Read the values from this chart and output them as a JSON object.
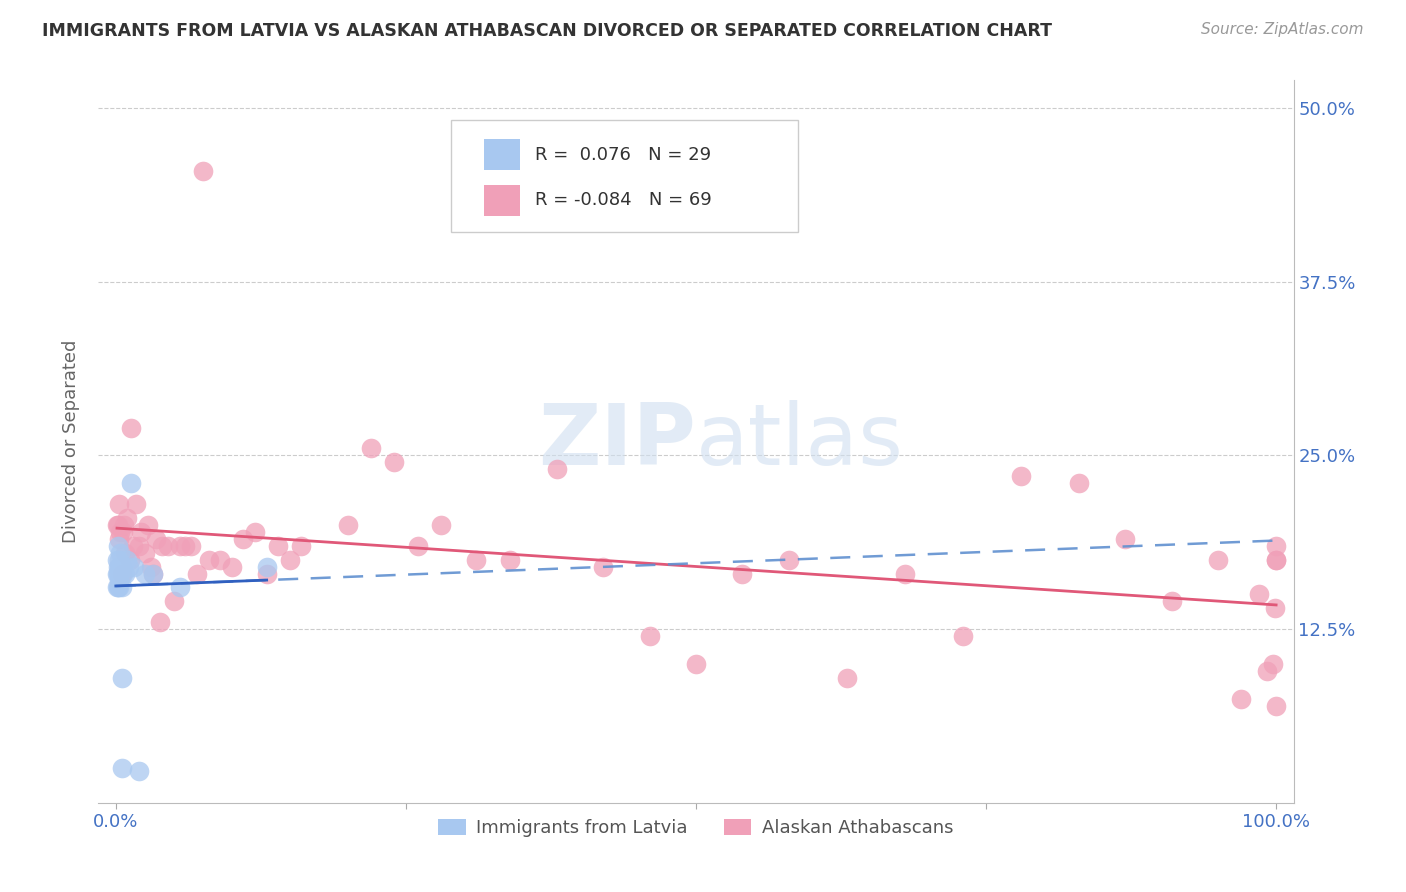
{
  "title": "IMMIGRANTS FROM LATVIA VS ALASKAN ATHABASCAN DIVORCED OR SEPARATED CORRELATION CHART",
  "source": "Source: ZipAtlas.com",
  "ylabel": "Divorced or Separated",
  "legend_labels": [
    "Immigrants from Latvia",
    "Alaskan Athabascans"
  ],
  "blue_R": "0.076",
  "blue_N": "29",
  "pink_R": "-0.084",
  "pink_N": "69",
  "blue_color": "#a8c8f0",
  "pink_color": "#f0a0b8",
  "blue_line_color": "#3060c0",
  "pink_line_color": "#e05878",
  "blue_dash_color": "#6090d0",
  "watermark_color": "#d0dff0",
  "blue_points_x": [
    0.001,
    0.001,
    0.001,
    0.002,
    0.002,
    0.002,
    0.002,
    0.003,
    0.003,
    0.003,
    0.003,
    0.003,
    0.004,
    0.004,
    0.005,
    0.005,
    0.005,
    0.005,
    0.006,
    0.008,
    0.01,
    0.011,
    0.013,
    0.016,
    0.02,
    0.025,
    0.032,
    0.055,
    0.13
  ],
  "blue_points_y": [
    0.155,
    0.165,
    0.175,
    0.155,
    0.165,
    0.17,
    0.185,
    0.155,
    0.16,
    0.165,
    0.17,
    0.175,
    0.17,
    0.18,
    0.025,
    0.09,
    0.155,
    0.17,
    0.165,
    0.165,
    0.175,
    0.17,
    0.23,
    0.17,
    0.023,
    0.165,
    0.165,
    0.155,
    0.17
  ],
  "pink_points_x": [
    0.001,
    0.002,
    0.003,
    0.003,
    0.004,
    0.005,
    0.006,
    0.007,
    0.008,
    0.01,
    0.012,
    0.013,
    0.015,
    0.017,
    0.02,
    0.022,
    0.025,
    0.028,
    0.03,
    0.032,
    0.035,
    0.038,
    0.04,
    0.045,
    0.05,
    0.055,
    0.06,
    0.065,
    0.07,
    0.075,
    0.08,
    0.09,
    0.1,
    0.11,
    0.12,
    0.13,
    0.14,
    0.15,
    0.16,
    0.2,
    0.22,
    0.24,
    0.26,
    0.28,
    0.31,
    0.34,
    0.38,
    0.42,
    0.46,
    0.5,
    0.54,
    0.58,
    0.63,
    0.68,
    0.73,
    0.78,
    0.83,
    0.87,
    0.91,
    0.95,
    0.97,
    0.985,
    0.992,
    0.997,
    0.999,
    1.0,
    1.0,
    1.0,
    1.0
  ],
  "pink_points_y": [
    0.2,
    0.2,
    0.19,
    0.215,
    0.195,
    0.165,
    0.195,
    0.2,
    0.18,
    0.205,
    0.175,
    0.27,
    0.185,
    0.215,
    0.185,
    0.195,
    0.18,
    0.2,
    0.17,
    0.165,
    0.19,
    0.13,
    0.185,
    0.185,
    0.145,
    0.185,
    0.185,
    0.185,
    0.165,
    0.455,
    0.175,
    0.175,
    0.17,
    0.19,
    0.195,
    0.165,
    0.185,
    0.175,
    0.185,
    0.2,
    0.255,
    0.245,
    0.185,
    0.2,
    0.175,
    0.175,
    0.24,
    0.17,
    0.12,
    0.1,
    0.165,
    0.175,
    0.09,
    0.165,
    0.12,
    0.235,
    0.23,
    0.19,
    0.145,
    0.175,
    0.075,
    0.15,
    0.095,
    0.1,
    0.14,
    0.07,
    0.175,
    0.175,
    0.185
  ],
  "y_ticks": [
    0.125,
    0.25,
    0.375,
    0.5
  ],
  "y_tick_labels": [
    "12.5%",
    "25.0%",
    "37.5%",
    "50.0%"
  ],
  "ylim_min": 0.0,
  "ylim_max": 0.52,
  "xlim_min": -0.015,
  "xlim_max": 1.015
}
